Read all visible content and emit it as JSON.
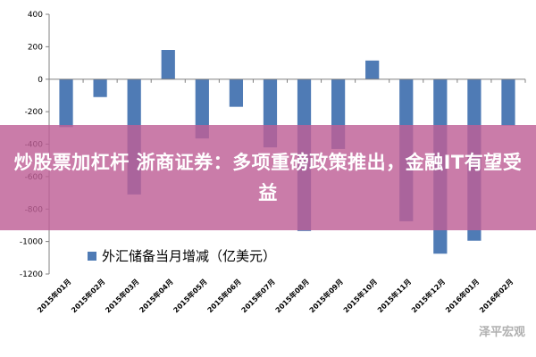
{
  "chart_data": {
    "type": "bar",
    "categories": [
      "2015年01月",
      "2015年02月",
      "2015年03月",
      "2015年04月",
      "2015年05月",
      "2015年06月",
      "2015年07月",
      "2015年08月",
      "2015年09月",
      "2015年10月",
      "2015年11月",
      "2015年12月",
      "2016年01月",
      "2016年02月"
    ],
    "series": [
      {
        "name": "外汇储备当月增减（亿美元）",
        "values": [
          -295,
          -110,
          -710,
          180,
          -365,
          -170,
          -420,
          -935,
          -430,
          115,
          -875,
          -1075,
          -995,
          -285
        ]
      }
    ],
    "ylim": [
      -1200,
      400
    ],
    "yticks": [
      "400",
      "200",
      "0",
      "-200",
      "-400",
      "-600",
      "-800",
      "-1000",
      "-1200"
    ],
    "grid": false,
    "legend_position": "bottom-left",
    "bar_color": "#4f7bb5"
  },
  "headline": "炒股票加杠杆 浙商证券：多项重磅政策推出，金融IT有望受益",
  "watermark": "泽平宏观",
  "colors": {
    "band": "#be5f96",
    "bar": "#4f7bb5"
  }
}
